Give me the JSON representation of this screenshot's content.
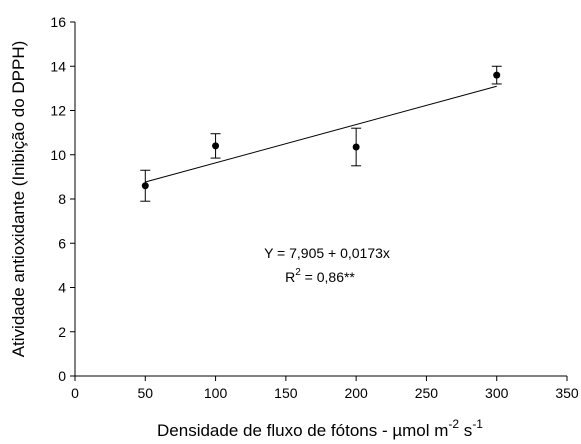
{
  "chart_data": {
    "type": "scatter",
    "xlabel": [
      "Densidade de fluxo de fótons - µmol m",
      "-2",
      " s",
      "-1"
    ],
    "ylabel": "Atividade antioxidante (Inibição do DPPH)",
    "x": [
      50,
      100,
      200,
      300
    ],
    "series": [
      {
        "color": "#000000",
        "values": [
          8.6,
          10.4,
          10.35,
          13.6
        ],
        "errors": [
          0.7,
          0.55,
          0.85,
          0.4
        ]
      }
    ],
    "fit": {
      "label": "Y = 7,905 + 0,0173x",
      "intercept": 7.905,
      "slope": 0.0173,
      "r2_label": [
        "R",
        "2",
        " = 0,86**"
      ]
    },
    "xlim": [
      0,
      350
    ],
    "xticks": [
      0,
      50,
      100,
      150,
      200,
      250,
      300,
      350
    ],
    "ylim": [
      0,
      16
    ],
    "yticks": [
      0,
      2,
      4,
      6,
      8,
      10,
      12,
      14,
      16
    ]
  }
}
